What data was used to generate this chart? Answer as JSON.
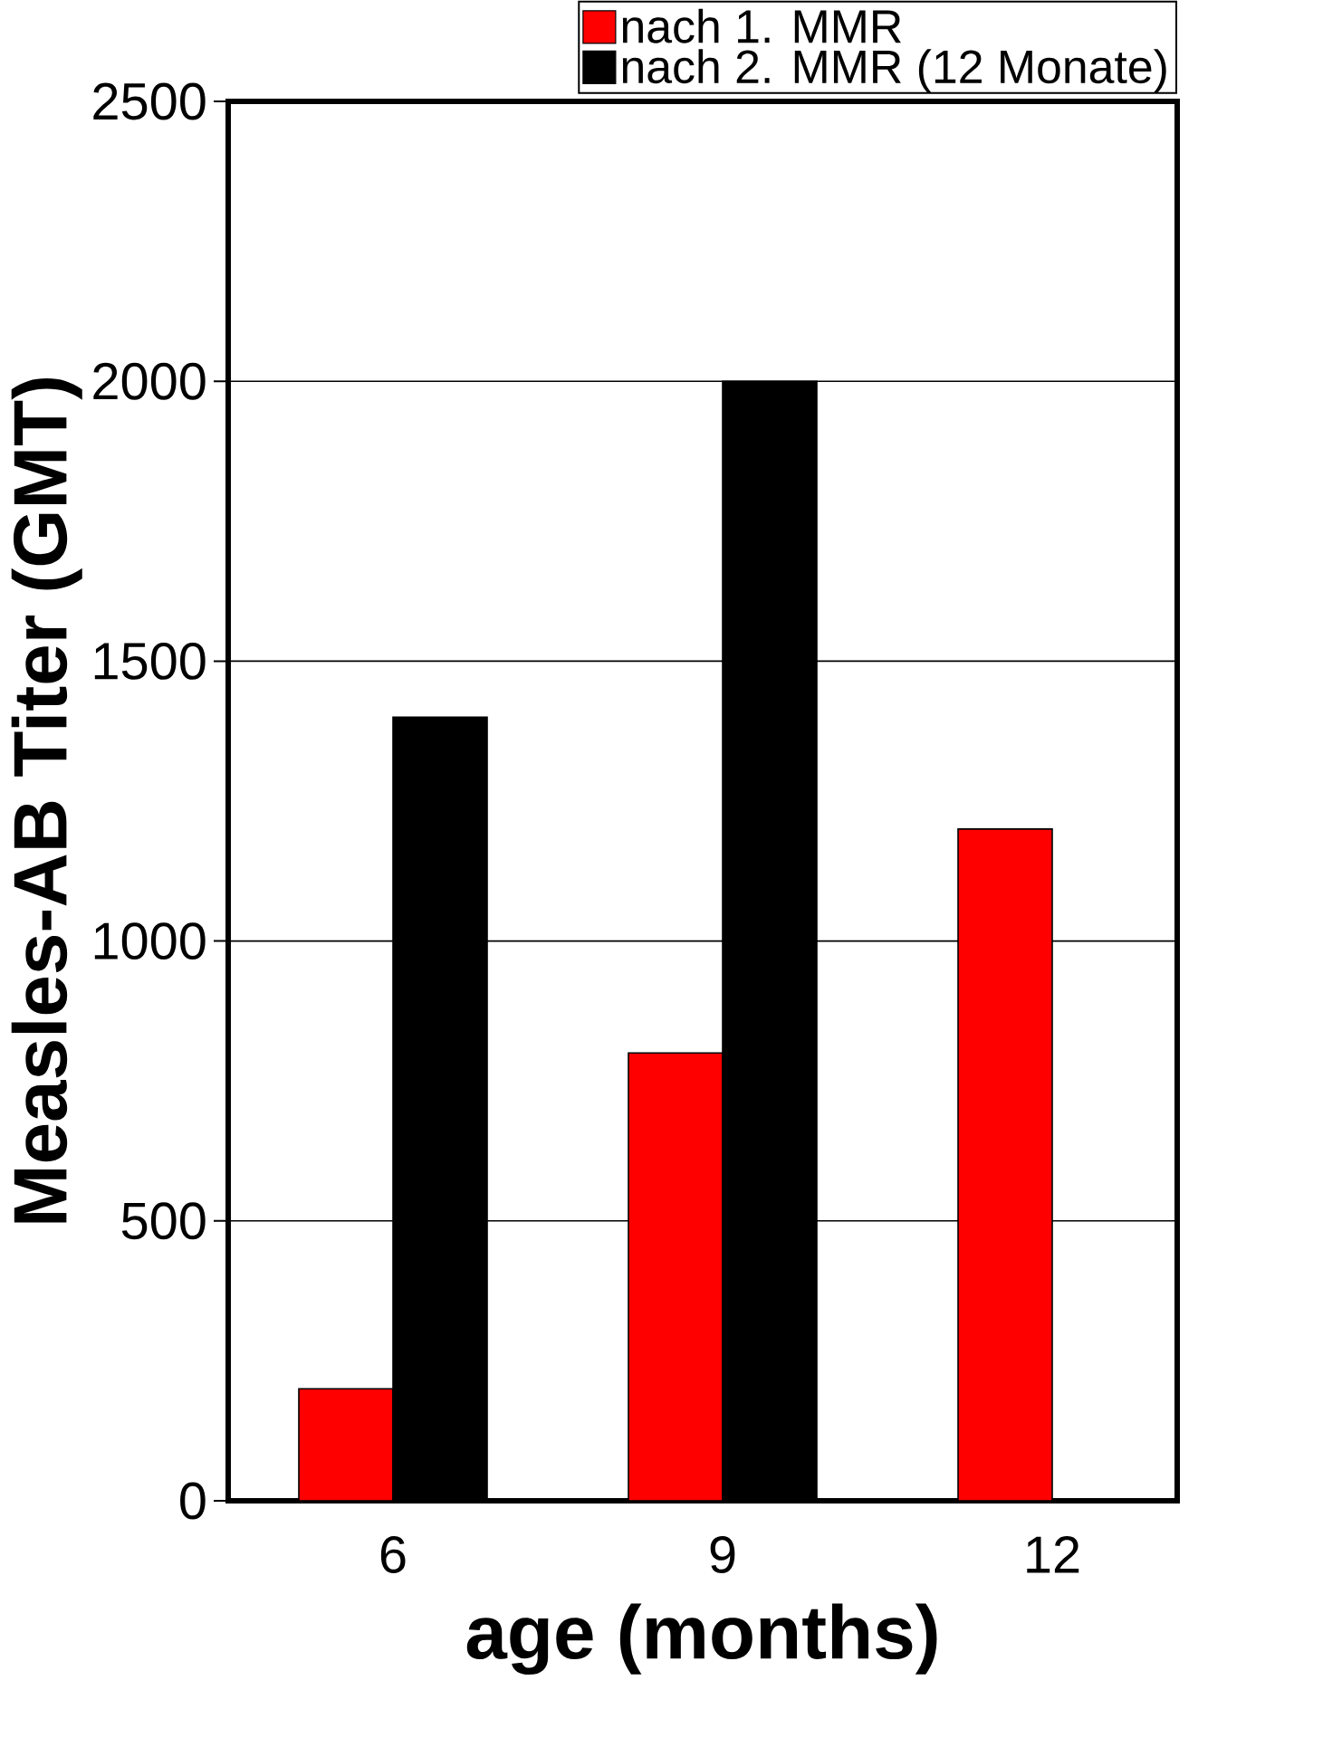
{
  "chart_data": {
    "type": "bar",
    "xlabel": "age (months)",
    "ylabel": "Measles-AB Titer (GMT)",
    "categories": [
      "6",
      "9",
      "12"
    ],
    "series": [
      {
        "name": "nach 1. MMR",
        "color": "#ff0000",
        "values": [
          200,
          800,
          1200
        ]
      },
      {
        "name": "nach 2. MMR (12 Monate)",
        "color": "#000000",
        "values": [
          1400,
          2000,
          null
        ]
      }
    ],
    "ylim": [
      0,
      2500
    ],
    "yticks": [
      0,
      500,
      1000,
      1500,
      2000,
      2500
    ],
    "grid": "y",
    "legend": "top right"
  }
}
